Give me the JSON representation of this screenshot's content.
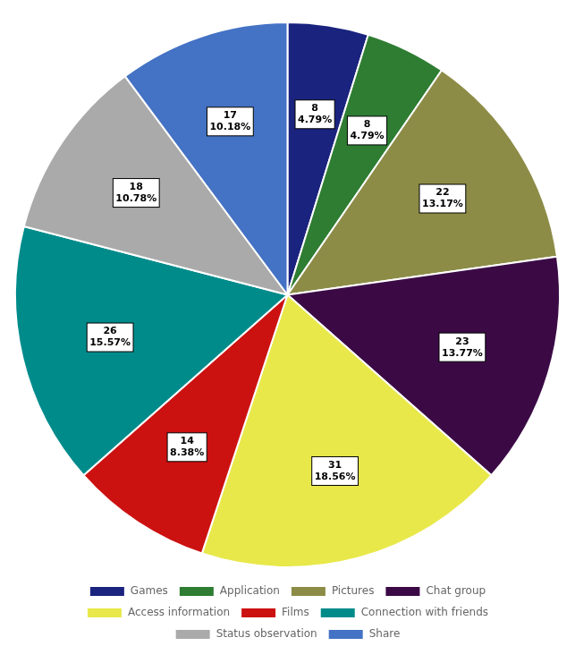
{
  "chart_data": {
    "type": "pie",
    "categories": [
      "Games",
      "Application",
      "Pictures",
      "Chat group",
      "Access information",
      "Films",
      "Connection with friends",
      "Status observation",
      "Share"
    ],
    "values": [
      8,
      8,
      22,
      23,
      31,
      14,
      26,
      18,
      17
    ],
    "value_labels": [
      "8\n4.79%",
      "8\n4.79%",
      "22\n13.17%",
      "23\n13.77%",
      "31\n18.56%",
      "14\n8.38%",
      "26\n15.57%",
      "18\n10.78%",
      "17\n10.18%"
    ],
    "colors": [
      "#1a237e",
      "#2e7d32",
      "#8d8c47",
      "#3b0a45",
      "#e8e84a",
      "#cc1111",
      "#008b8b",
      "#aaaaaa",
      "#4472c4"
    ],
    "data_labels": true,
    "legend": "bottom"
  }
}
